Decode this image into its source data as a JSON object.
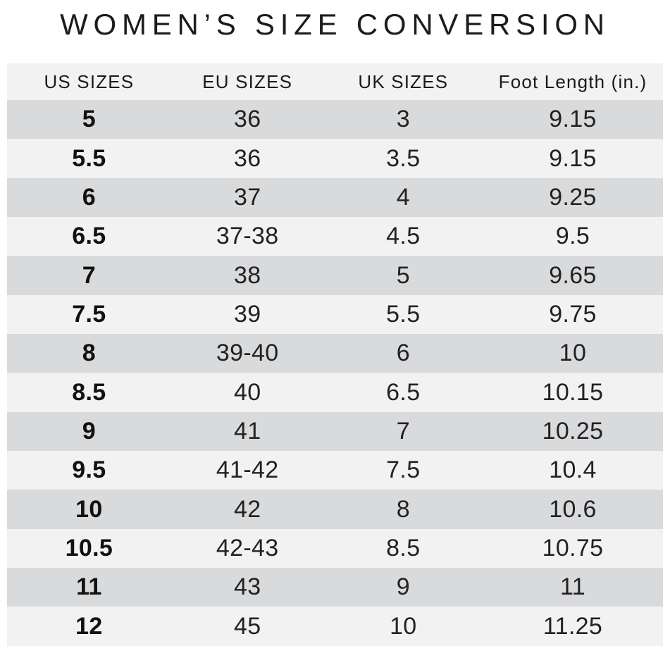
{
  "title": "WOMEN’S SIZE CONVERSION",
  "colors": {
    "background": "#ffffff",
    "row_dark": "#d9dadc",
    "row_light": "#f2f2f3",
    "header_bg": "#f2f2f3",
    "text": "#222222",
    "title_text": "#1c1c1c"
  },
  "chart_data": {
    "type": "table",
    "title": "WOMEN’S SIZE CONVERSION",
    "columns": [
      "US SIZES",
      "EU SIZES",
      "UK SIZES",
      "Foot Length (in.)"
    ],
    "column_keys": [
      "us-size",
      "eu-size",
      "uk-size",
      "foot-length"
    ],
    "rows": [
      [
        "5",
        "36",
        "3",
        "9.15"
      ],
      [
        "5.5",
        "36",
        "3.5",
        "9.15"
      ],
      [
        "6",
        "37",
        "4",
        "9.25"
      ],
      [
        "6.5",
        "37-38",
        "4.5",
        "9.5"
      ],
      [
        "7",
        "38",
        "5",
        "9.65"
      ],
      [
        "7.5",
        "39",
        "5.5",
        "9.75"
      ],
      [
        "8",
        "39-40",
        "6",
        "10"
      ],
      [
        "8.5",
        "40",
        "6.5",
        "10.15"
      ],
      [
        "9",
        "41",
        "7",
        "10.25"
      ],
      [
        "9.5",
        "41-42",
        "7.5",
        "10.4"
      ],
      [
        "10",
        "42",
        "8",
        "10.6"
      ],
      [
        "10.5",
        "42-43",
        "8.5",
        "10.75"
      ],
      [
        "11",
        "43",
        "9",
        "11"
      ],
      [
        "12",
        "45",
        "10",
        "11.25"
      ]
    ],
    "layout": {
      "striping": "first data row dark, alternating",
      "first_column_bold": true,
      "alignment": "center"
    }
  }
}
